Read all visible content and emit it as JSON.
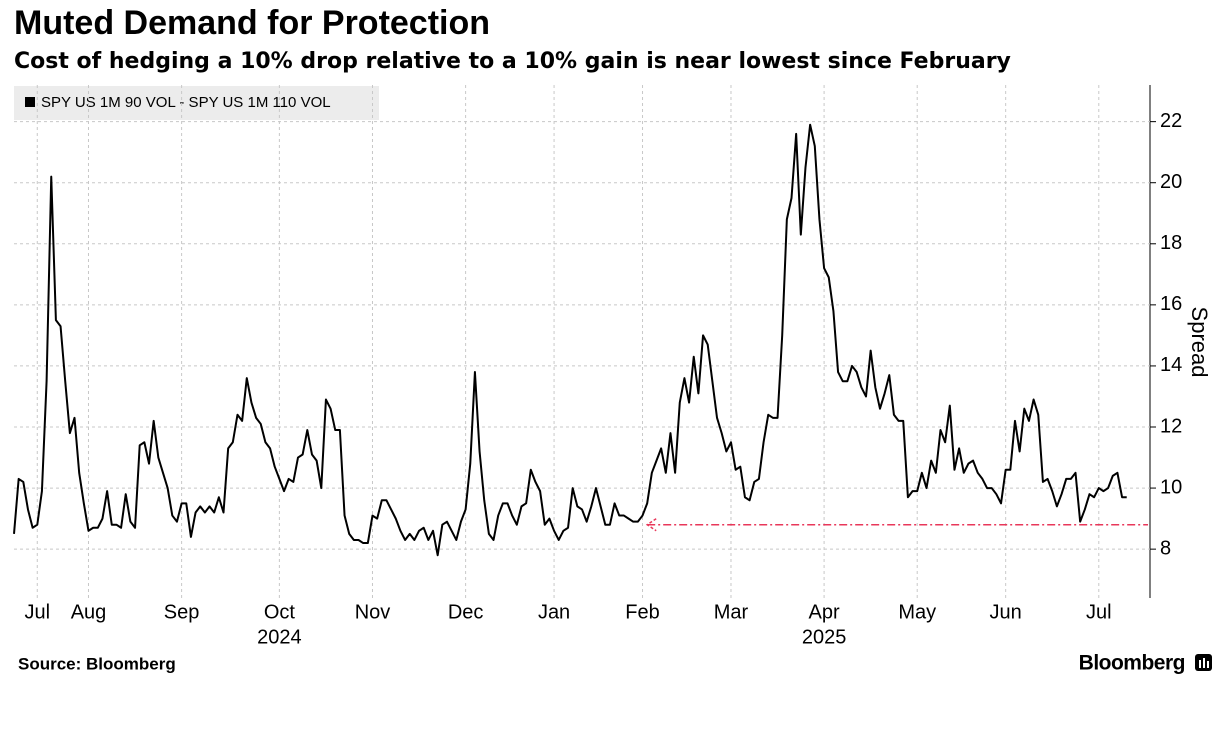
{
  "chart_data": {
    "type": "line",
    "title": "Muted Demand for Protection",
    "subtitle": "Cost of hedging a 10% drop relative to a 10% gain is near lowest since February",
    "y_label": "Spread",
    "source": "Source: Bloomberg",
    "brand": "Bloomberg",
    "series": [
      {
        "name": "SPY US 1M 90 VOL - SPY US 1M 110 VOL",
        "color": "#000000",
        "values": [
          8.5,
          10.3,
          10.2,
          9.3,
          8.7,
          8.8,
          9.9,
          13.5,
          20.2,
          15.5,
          15.3,
          13.5,
          11.8,
          12.3,
          10.5,
          9.5,
          8.6,
          8.7,
          8.7,
          9.0,
          9.9,
          8.8,
          8.8,
          8.7,
          9.8,
          8.9,
          8.7,
          11.4,
          11.5,
          10.8,
          12.2,
          11.0,
          10.5,
          10.0,
          9.1,
          8.9,
          9.5,
          9.5,
          8.4,
          9.2,
          9.4,
          9.2,
          9.4,
          9.2,
          9.7,
          9.2,
          11.3,
          11.5,
          12.4,
          12.2,
          13.6,
          12.8,
          12.3,
          12.1,
          11.5,
          11.3,
          10.7,
          10.3,
          9.9,
          10.3,
          10.2,
          11.0,
          11.1,
          11.9,
          11.1,
          10.9,
          10.0,
          12.9,
          12.6,
          11.9,
          11.9,
          9.1,
          8.5,
          8.3,
          8.3,
          8.2,
          8.2,
          9.1,
          9.0,
          9.6,
          9.6,
          9.3,
          9.0,
          8.6,
          8.3,
          8.5,
          8.3,
          8.6,
          8.7,
          8.3,
          8.6,
          7.8,
          8.8,
          8.9,
          8.6,
          8.3,
          8.9,
          9.3,
          10.8,
          13.8,
          11.2,
          9.6,
          8.5,
          8.3,
          9.1,
          9.5,
          9.5,
          9.1,
          8.8,
          9.4,
          9.5,
          10.6,
          10.2,
          9.9,
          8.8,
          9.0,
          8.6,
          8.3,
          8.6,
          8.7,
          10.0,
          9.4,
          9.3,
          8.9,
          9.4,
          10.0,
          9.4,
          8.8,
          8.8,
          9.5,
          9.1,
          9.1,
          9.0,
          8.9,
          8.9,
          9.1,
          9.5,
          10.5,
          10.9,
          11.3,
          10.5,
          11.8,
          10.5,
          12.8,
          13.6,
          12.8,
          14.3,
          13.1,
          15.0,
          14.7,
          13.5,
          12.3,
          11.8,
          11.2,
          11.5,
          10.6,
          10.7,
          9.7,
          9.6,
          10.2,
          10.3,
          11.5,
          12.4,
          12.3,
          12.3,
          15.0,
          18.8,
          19.5,
          21.6,
          18.3,
          20.5,
          21.9,
          21.2,
          18.8,
          17.2,
          16.9,
          15.8,
          13.8,
          13.5,
          13.5,
          14.0,
          13.8,
          13.3,
          13.0,
          14.5,
          13.3,
          12.6,
          13.1,
          13.7,
          12.4,
          12.2,
          12.2,
          9.7,
          9.9,
          9.9,
          10.5,
          10.0,
          10.9,
          10.5,
          11.9,
          11.5,
          12.7,
          10.6,
          11.3,
          10.5,
          10.8,
          10.9,
          10.5,
          10.3,
          10.0,
          10.0,
          9.8,
          9.5,
          10.6,
          10.6,
          12.2,
          11.2,
          12.6,
          12.2,
          12.9,
          12.4,
          10.2,
          10.3,
          9.9,
          9.4,
          9.8,
          10.3,
          10.3,
          10.5,
          8.9,
          9.3,
          9.8,
          9.7,
          10.0,
          9.9,
          10.0,
          10.4,
          10.5,
          9.7,
          9.7
        ]
      }
    ],
    "xlim": [
      0,
      244
    ],
    "xticks": [
      {
        "value": 5,
        "label": "Jul"
      },
      {
        "value": 16,
        "label": "Aug"
      },
      {
        "value": 36,
        "label": "Sep"
      },
      {
        "value": 57,
        "label": "Oct"
      },
      {
        "value": 77,
        "label": "Nov"
      },
      {
        "value": 97,
        "label": "Dec"
      },
      {
        "value": 116,
        "label": "Jan"
      },
      {
        "value": 135,
        "label": "Feb"
      },
      {
        "value": 154,
        "label": "Mar"
      },
      {
        "value": 174,
        "label": "Apr"
      },
      {
        "value": 194,
        "label": "May"
      },
      {
        "value": 213,
        "label": "Jun"
      },
      {
        "value": 233,
        "label": "Jul"
      }
    ],
    "year_ticks": [
      {
        "value": 57,
        "label": "2024"
      },
      {
        "value": 174,
        "label": "2025"
      }
    ],
    "ylim": [
      6.4,
      23.2
    ],
    "yticks": [
      8,
      10,
      12,
      14,
      16,
      18,
      20,
      22
    ],
    "grid": true,
    "annotation": {
      "y": 8.8,
      "x_start": 136,
      "color": "#e8375a"
    }
  }
}
